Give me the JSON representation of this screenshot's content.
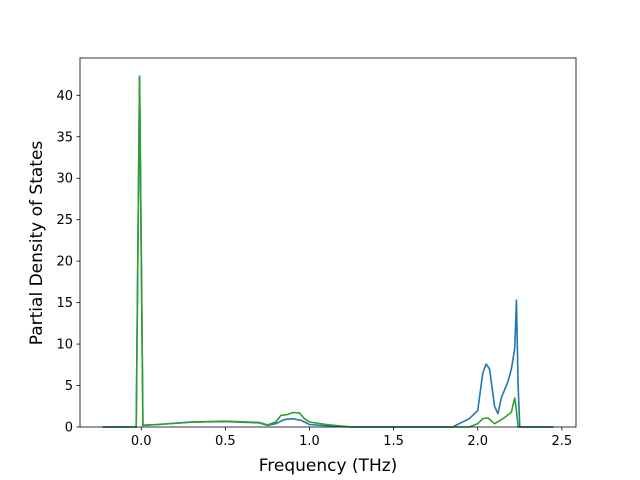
{
  "chart_data": {
    "type": "line",
    "xlabel": "Frequency (THz)",
    "ylabel": "Partial Density of States",
    "xlim": [
      -0.364,
      2.584
    ],
    "ylim": [
      0,
      44.5
    ],
    "xticks": [
      {
        "value": 0,
        "label": "0.0"
      },
      0.5,
      {
        "value": 1,
        "label": "1.0"
      },
      1.5,
      {
        "value": 2,
        "label": "2.0"
      },
      2.5
    ],
    "yticks": [
      0,
      5,
      10,
      15,
      20,
      25,
      30,
      35,
      40
    ],
    "grid": false,
    "series": [
      {
        "color": "#1f77b4",
        "x": [
          -0.23,
          -0.03,
          -0.01,
          0.01,
          0.1,
          0.3,
          0.5,
          0.7,
          0.75,
          0.8,
          0.85,
          0.9,
          0.95,
          1.0,
          1.1,
          1.25,
          1.85,
          1.95,
          2.0,
          2.03,
          2.05,
          2.07,
          2.1,
          2.12,
          2.14,
          2.18,
          2.2,
          2.22,
          2.23,
          2.24,
          2.25,
          2.45
        ],
        "values": [
          0,
          0,
          42.3,
          0.2,
          0.3,
          0.6,
          0.65,
          0.5,
          0.2,
          0.4,
          0.9,
          1.0,
          0.8,
          0.3,
          0.15,
          0,
          0,
          1.0,
          2.0,
          6.5,
          7.6,
          7.0,
          2.5,
          1.6,
          3.5,
          5.5,
          7.0,
          9.5,
          15.3,
          5,
          0,
          0
        ]
      },
      {
        "color": "#2ca02c",
        "x": [
          -0.23,
          -0.03,
          -0.01,
          0.01,
          0.1,
          0.3,
          0.5,
          0.7,
          0.75,
          0.8,
          0.83,
          0.87,
          0.9,
          0.94,
          0.97,
          1.0,
          1.1,
          1.25,
          1.95,
          2.0,
          2.03,
          2.06,
          2.1,
          2.15,
          2.2,
          2.22,
          2.23,
          2.24,
          2.45
        ],
        "values": [
          0,
          0,
          42.3,
          0.2,
          0.3,
          0.6,
          0.7,
          0.55,
          0.25,
          0.6,
          1.4,
          1.5,
          1.75,
          1.7,
          1.0,
          0.6,
          0.3,
          0,
          0,
          0.4,
          1.0,
          1.1,
          0.4,
          1.0,
          1.8,
          3.5,
          2.0,
          0,
          0
        ]
      }
    ]
  }
}
